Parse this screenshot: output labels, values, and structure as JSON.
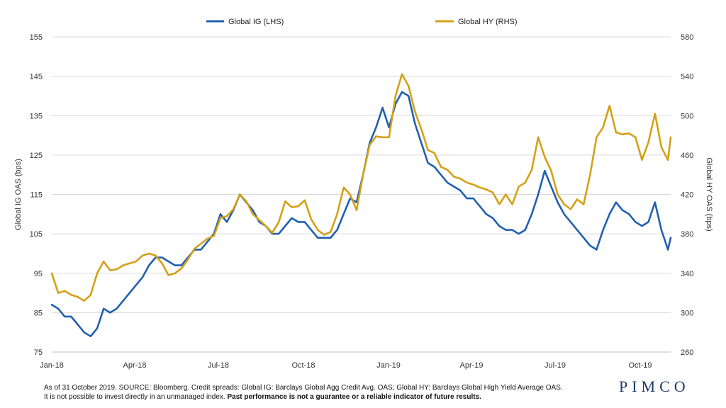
{
  "chart_data": {
    "type": "line",
    "legend": {
      "placement": "top-center"
    },
    "grid": {
      "horizontal": true,
      "vertical": false
    },
    "x_axis": {
      "labels": [
        "Jan-18",
        "Apr-18",
        "Jul-18",
        "Oct-18",
        "Jan-19",
        "Apr-19",
        "Jul-19",
        "Oct-19"
      ],
      "range": [
        "2018-01-01",
        "2019-10-31"
      ]
    },
    "y_left": {
      "label": "Global IG OAS (bps)",
      "range": [
        75,
        155
      ],
      "ticks": [
        75,
        85,
        95,
        105,
        115,
        125,
        135,
        145,
        155
      ]
    },
    "y_right": {
      "label": "Global HY OAS (bps)",
      "range": [
        260,
        580
      ],
      "ticks": [
        260,
        300,
        340,
        380,
        420,
        460,
        500,
        540,
        580
      ]
    },
    "series": [
      {
        "name": "Global IG (LHS)",
        "axis": "left",
        "color": "#2060b0",
        "points": [
          [
            "2018-01-01",
            87
          ],
          [
            "2018-01-08",
            86
          ],
          [
            "2018-01-15",
            84
          ],
          [
            "2018-01-22",
            84
          ],
          [
            "2018-01-29",
            82
          ],
          [
            "2018-02-05",
            80
          ],
          [
            "2018-02-12",
            79
          ],
          [
            "2018-02-19",
            81
          ],
          [
            "2018-02-26",
            86
          ],
          [
            "2018-03-05",
            85
          ],
          [
            "2018-03-12",
            86
          ],
          [
            "2018-03-19",
            88
          ],
          [
            "2018-03-26",
            90
          ],
          [
            "2018-04-02",
            92
          ],
          [
            "2018-04-09",
            94
          ],
          [
            "2018-04-16",
            97
          ],
          [
            "2018-04-23",
            99
          ],
          [
            "2018-04-30",
            99
          ],
          [
            "2018-05-07",
            98
          ],
          [
            "2018-05-14",
            97
          ],
          [
            "2018-05-21",
            97
          ],
          [
            "2018-05-28",
            99
          ],
          [
            "2018-06-04",
            101
          ],
          [
            "2018-06-11",
            101
          ],
          [
            "2018-06-18",
            103
          ],
          [
            "2018-06-25",
            105
          ],
          [
            "2018-07-02",
            110
          ],
          [
            "2018-07-09",
            108
          ],
          [
            "2018-07-16",
            111
          ],
          [
            "2018-07-23",
            115
          ],
          [
            "2018-07-30",
            113
          ],
          [
            "2018-08-06",
            111
          ],
          [
            "2018-08-13",
            108
          ],
          [
            "2018-08-20",
            107
          ],
          [
            "2018-08-27",
            105
          ],
          [
            "2018-09-03",
            105
          ],
          [
            "2018-09-10",
            107
          ],
          [
            "2018-09-17",
            109
          ],
          [
            "2018-09-24",
            108
          ],
          [
            "2018-10-01",
            108
          ],
          [
            "2018-10-08",
            106
          ],
          [
            "2018-10-15",
            104
          ],
          [
            "2018-10-22",
            104
          ],
          [
            "2018-10-29",
            104
          ],
          [
            "2018-11-05",
            106
          ],
          [
            "2018-11-12",
            110
          ],
          [
            "2018-11-19",
            114
          ],
          [
            "2018-11-26",
            113
          ],
          [
            "2018-12-03",
            120
          ],
          [
            "2018-12-10",
            128
          ],
          [
            "2018-12-17",
            132
          ],
          [
            "2018-12-24",
            137
          ],
          [
            "2018-12-31",
            132
          ],
          [
            "2019-01-07",
            138
          ],
          [
            "2019-01-14",
            141
          ],
          [
            "2019-01-21",
            140
          ],
          [
            "2019-01-28",
            133
          ],
          [
            "2019-02-04",
            128
          ],
          [
            "2019-02-11",
            123
          ],
          [
            "2019-02-18",
            122
          ],
          [
            "2019-02-25",
            120
          ],
          [
            "2019-03-04",
            118
          ],
          [
            "2019-03-11",
            117
          ],
          [
            "2019-03-18",
            116
          ],
          [
            "2019-03-25",
            114
          ],
          [
            "2019-04-01",
            114
          ],
          [
            "2019-04-08",
            112
          ],
          [
            "2019-04-15",
            110
          ],
          [
            "2019-04-22",
            109
          ],
          [
            "2019-04-29",
            107
          ],
          [
            "2019-05-06",
            106
          ],
          [
            "2019-05-13",
            106
          ],
          [
            "2019-05-20",
            105
          ],
          [
            "2019-05-27",
            106
          ],
          [
            "2019-06-03",
            110
          ],
          [
            "2019-06-10",
            115
          ],
          [
            "2019-06-17",
            121
          ],
          [
            "2019-06-24",
            117
          ],
          [
            "2019-07-01",
            113
          ],
          [
            "2019-07-08",
            110
          ],
          [
            "2019-07-15",
            108
          ],
          [
            "2019-07-22",
            106
          ],
          [
            "2019-07-29",
            104
          ],
          [
            "2019-08-05",
            102
          ],
          [
            "2019-08-12",
            101
          ],
          [
            "2019-08-19",
            106
          ],
          [
            "2019-08-26",
            110
          ],
          [
            "2019-09-02",
            113
          ],
          [
            "2019-09-09",
            111
          ],
          [
            "2019-09-16",
            110
          ],
          [
            "2019-09-23",
            108
          ],
          [
            "2019-09-30",
            107
          ],
          [
            "2019-10-07",
            108
          ],
          [
            "2019-10-14",
            113
          ],
          [
            "2019-10-21",
            106
          ],
          [
            "2019-10-28",
            101
          ],
          [
            "2019-10-31",
            104
          ]
        ]
      },
      {
        "name": "Global HY (RHS)",
        "axis": "right",
        "color": "#d4a017",
        "points": [
          [
            "2018-01-01",
            340
          ],
          [
            "2018-01-08",
            320
          ],
          [
            "2018-01-15",
            322
          ],
          [
            "2018-01-22",
            318
          ],
          [
            "2018-01-29",
            316
          ],
          [
            "2018-02-05",
            312
          ],
          [
            "2018-02-12",
            318
          ],
          [
            "2018-02-19",
            340
          ],
          [
            "2018-02-26",
            352
          ],
          [
            "2018-03-05",
            343
          ],
          [
            "2018-03-12",
            344
          ],
          [
            "2018-03-19",
            348
          ],
          [
            "2018-03-26",
            350
          ],
          [
            "2018-04-02",
            352
          ],
          [
            "2018-04-09",
            358
          ],
          [
            "2018-04-16",
            360
          ],
          [
            "2018-04-23",
            358
          ],
          [
            "2018-04-30",
            350
          ],
          [
            "2018-05-07",
            338
          ],
          [
            "2018-05-14",
            340
          ],
          [
            "2018-05-21",
            345
          ],
          [
            "2018-05-28",
            354
          ],
          [
            "2018-06-04",
            365
          ],
          [
            "2018-06-11",
            370
          ],
          [
            "2018-06-18",
            375
          ],
          [
            "2018-06-25",
            378
          ],
          [
            "2018-07-02",
            396
          ],
          [
            "2018-07-09",
            398
          ],
          [
            "2018-07-16",
            405
          ],
          [
            "2018-07-23",
            420
          ],
          [
            "2018-07-30",
            413
          ],
          [
            "2018-08-06",
            400
          ],
          [
            "2018-08-13",
            394
          ],
          [
            "2018-08-20",
            388
          ],
          [
            "2018-08-27",
            381
          ],
          [
            "2018-09-03",
            392
          ],
          [
            "2018-09-10",
            413
          ],
          [
            "2018-09-17",
            407
          ],
          [
            "2018-09-24",
            408
          ],
          [
            "2018-10-01",
            414
          ],
          [
            "2018-10-08",
            395
          ],
          [
            "2018-10-15",
            384
          ],
          [
            "2018-10-22",
            379
          ],
          [
            "2018-10-29",
            382
          ],
          [
            "2018-11-05",
            400
          ],
          [
            "2018-11-12",
            427
          ],
          [
            "2018-11-19",
            420
          ],
          [
            "2018-11-26",
            404
          ],
          [
            "2018-12-03",
            440
          ],
          [
            "2018-12-10",
            470
          ],
          [
            "2018-12-17",
            479
          ],
          [
            "2018-12-24",
            478
          ],
          [
            "2018-12-31",
            478
          ],
          [
            "2019-01-07",
            520
          ],
          [
            "2019-01-14",
            542
          ],
          [
            "2019-01-21",
            530
          ],
          [
            "2019-01-28",
            504
          ],
          [
            "2019-02-04",
            486
          ],
          [
            "2019-02-11",
            465
          ],
          [
            "2019-02-18",
            462
          ],
          [
            "2019-02-25",
            448
          ],
          [
            "2019-03-04",
            445
          ],
          [
            "2019-03-11",
            438
          ],
          [
            "2019-03-18",
            436
          ],
          [
            "2019-03-25",
            432
          ],
          [
            "2019-04-01",
            430
          ],
          [
            "2019-04-08",
            427
          ],
          [
            "2019-04-15",
            425
          ],
          [
            "2019-04-22",
            422
          ],
          [
            "2019-04-29",
            410
          ],
          [
            "2019-05-06",
            420
          ],
          [
            "2019-05-13",
            410
          ],
          [
            "2019-05-20",
            428
          ],
          [
            "2019-05-27",
            432
          ],
          [
            "2019-06-03",
            445
          ],
          [
            "2019-06-10",
            478
          ],
          [
            "2019-06-17",
            458
          ],
          [
            "2019-06-24",
            444
          ],
          [
            "2019-07-01",
            420
          ],
          [
            "2019-07-08",
            410
          ],
          [
            "2019-07-15",
            405
          ],
          [
            "2019-07-22",
            415
          ],
          [
            "2019-07-29",
            410
          ],
          [
            "2019-08-05",
            440
          ],
          [
            "2019-08-12",
            478
          ],
          [
            "2019-08-19",
            488
          ],
          [
            "2019-08-26",
            510
          ],
          [
            "2019-09-02",
            483
          ],
          [
            "2019-09-09",
            481
          ],
          [
            "2019-09-16",
            482
          ],
          [
            "2019-09-23",
            478
          ],
          [
            "2019-09-30",
            455
          ],
          [
            "2019-10-07",
            473
          ],
          [
            "2019-10-14",
            502
          ],
          [
            "2019-10-21",
            468
          ],
          [
            "2019-10-28",
            455
          ],
          [
            "2019-10-31",
            478
          ]
        ]
      }
    ]
  },
  "footnote": {
    "line1": "As of 31 October 2019. SOURCE: Bloomberg.  Credit spreads: Global IG: Barclays Global Agg Credit Avg. OAS; Global HY: Barclays Global High Yield Average OAS.",
    "line2_plain": "It is not possible to invest directly in an unmanaged index. ",
    "line2_bold": "Past performance is not a guarantee or a reliable indicator of future results."
  },
  "logo": {
    "text": "PIMCO",
    "color": "#1f3a6b"
  }
}
